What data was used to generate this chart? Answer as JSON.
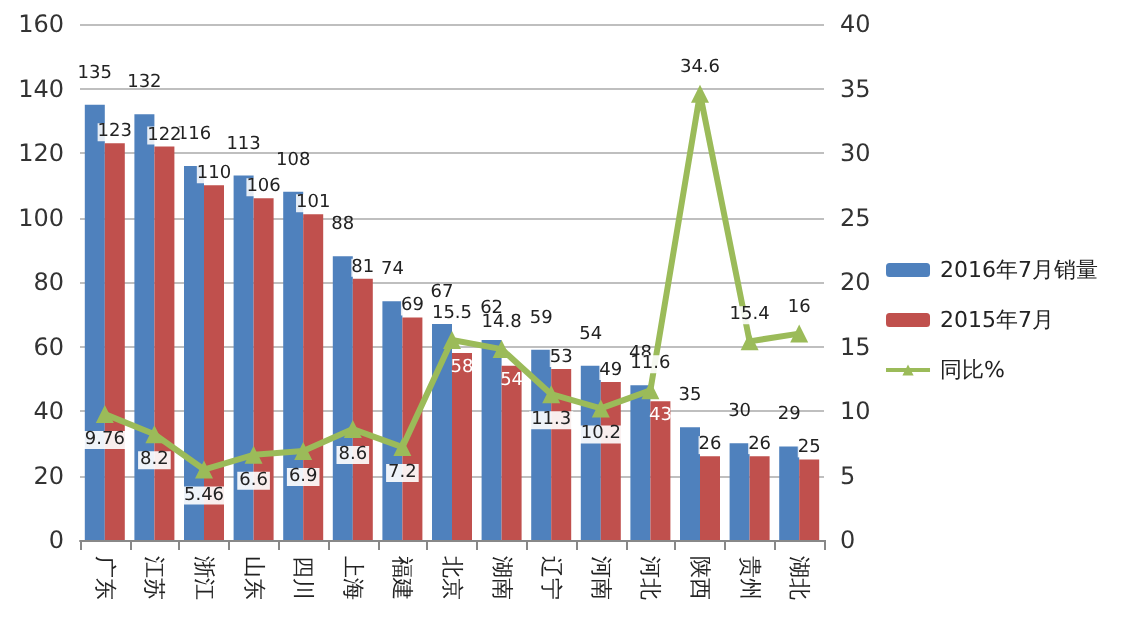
{
  "chart_data": {
    "type": "bar",
    "categories": [
      "广东",
      "江苏",
      "浙江",
      "山东",
      "四川",
      "上海",
      "福建",
      "北京",
      "湖南",
      "辽宁",
      "河南",
      "河北",
      "陕西",
      "贵州",
      "湖北"
    ],
    "series": [
      {
        "name": "2016年7月销量",
        "color": "#4f81bd",
        "values": [
          135,
          132,
          116,
          113,
          108,
          88,
          74,
          67,
          62,
          59,
          54,
          48,
          35,
          30,
          29
        ]
      },
      {
        "name": "2015年7月",
        "color": "#c0504d",
        "values": [
          123,
          122,
          110,
          106,
          101,
          81,
          69,
          58,
          54,
          53,
          49,
          43,
          26,
          26,
          25
        ]
      },
      {
        "name": "同比%",
        "type": "line",
        "axis": "y2",
        "color": "#9bbb59",
        "marker": "triangle",
        "values": [
          9.76,
          8.2,
          5.46,
          6.6,
          6.9,
          8.6,
          7.2,
          15.5,
          14.8,
          11.3,
          10.2,
          11.6,
          34.6,
          15.4,
          16
        ]
      }
    ],
    "ylim": [
      0,
      160
    ],
    "yticks": [
      0,
      20,
      40,
      60,
      80,
      100,
      120,
      140,
      160
    ],
    "y2lim": [
      0,
      40
    ],
    "y2ticks": [
      0,
      5,
      10,
      15,
      20,
      25,
      30,
      35,
      40
    ],
    "grid": "y",
    "legend": "right",
    "data_labels": true
  }
}
